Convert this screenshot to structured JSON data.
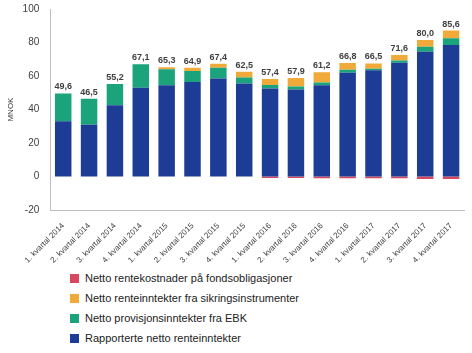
{
  "chart_data": {
    "type": "bar",
    "stacked": true,
    "grid": false,
    "legend": "bottom",
    "y_label": "MNOK",
    "categories": [
      "1. kvartal 2014",
      "2. kvartal 2014",
      "3. kvartal 2014",
      "4. kvartal 2014",
      "1. kvartal 2015",
      "2. kvartal 2015",
      "3. kvartal 2015",
      "4. kvartal 2015",
      "1. kvartal 2016",
      "2. kvartal 2016",
      "3. kvartal 2016",
      "4. kvartal 2016",
      "1. kvartal 2017",
      "2. kvartal 2017",
      "3. kvartal 2017",
      "4. kvartal 2017"
    ],
    "series": [
      {
        "name": "Rapporterte netto renteinntekter",
        "color": "#1c3c96",
        "values": [
          33,
          31,
          42.5,
          53,
          54.5,
          56.5,
          58.5,
          55.5,
          52.5,
          52,
          54.5,
          62,
          63.5,
          68,
          74.5,
          78.5
        ]
      },
      {
        "name": "Netto provisjonsinntekter fra EBK",
        "color": "#1ba37b",
        "values": [
          16.6,
          15.5,
          12.7,
          14.1,
          9.5,
          6.5,
          6.4,
          3.7,
          2.2,
          1.8,
          1.7,
          1.8,
          0.8,
          1.2,
          3.0,
          4.0
        ]
      },
      {
        "name": "Netto renteinntekter fra sikringsinstrumenter",
        "color": "#efaa3a",
        "values": [
          0,
          0,
          0,
          0,
          1.3,
          1.9,
          2.5,
          3.3,
          3.5,
          5.0,
          6.0,
          4.0,
          3.2,
          3.4,
          4.0,
          4.6
        ]
      },
      {
        "name": "Netto rentekostnader på fondsobligasjoner",
        "color": "#d8465f",
        "values": [
          0,
          0,
          0,
          0,
          0,
          0,
          0,
          0,
          -0.8,
          -0.9,
          -1.0,
          -1.0,
          -1.0,
          -1.0,
          -1.5,
          -1.5
        ]
      }
    ],
    "totals": [
      49.6,
      46.5,
      55.2,
      67.1,
      65.3,
      64.9,
      67.4,
      62.5,
      57.4,
      57.9,
      61.2,
      66.8,
      66.5,
      71.6,
      80.0,
      85.6
    ],
    "total_labels": [
      "49,6",
      "46,5",
      "55,2",
      "67,1",
      "65,3",
      "64,9",
      "67,4",
      "62,5",
      "57,4",
      "57,9",
      "61,2",
      "66,8",
      "66,5",
      "71,6",
      "80,0",
      "85,6"
    ],
    "ylim": [
      -20,
      100
    ],
    "yticks": [
      -20,
      0,
      20,
      40,
      60,
      80,
      100
    ]
  }
}
